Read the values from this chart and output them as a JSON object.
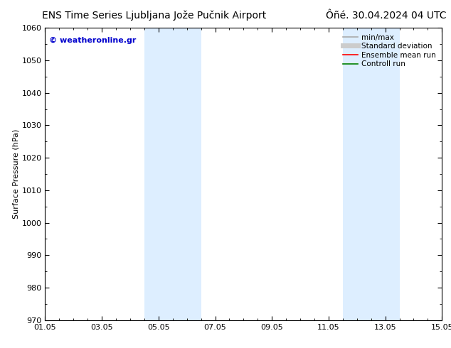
{
  "title_left": "ENS Time Series Ljubljana Jože Pučnik Airport",
  "title_right": "Ôñé. 30.04.2024 04 UTC",
  "ylabel": "Surface Pressure (hPa)",
  "ylim": [
    970,
    1060
  ],
  "yticks": [
    970,
    980,
    990,
    1000,
    1010,
    1020,
    1030,
    1040,
    1050,
    1060
  ],
  "xtick_labels": [
    "01.05",
    "03.05",
    "05.05",
    "07.05",
    "09.05",
    "11.05",
    "13.05",
    "15.05"
  ],
  "xtick_positions": [
    0,
    2,
    4,
    6,
    8,
    10,
    12,
    14
  ],
  "xlim": [
    0,
    14
  ],
  "shaded_bands": [
    {
      "x_start": 3.5,
      "x_end": 4.5,
      "color": "#ddeeff"
    },
    {
      "x_start": 4.5,
      "x_end": 5.5,
      "color": "#ddeeff"
    },
    {
      "x_start": 10.5,
      "x_end": 11.5,
      "color": "#ddeeff"
    },
    {
      "x_start": 11.5,
      "x_end": 12.5,
      "color": "#ddeeff"
    }
  ],
  "watermark_text": "© weatheronline.gr",
  "watermark_color": "#0000cc",
  "bg_color": "#ffffff",
  "legend_items": [
    {
      "label": "min/max",
      "color": "#aaaaaa",
      "linewidth": 1.2,
      "linestyle": "-"
    },
    {
      "label": "Standard deviation",
      "color": "#cccccc",
      "linewidth": 5,
      "linestyle": "-"
    },
    {
      "label": "Ensemble mean run",
      "color": "#ff0000",
      "linewidth": 1.2,
      "linestyle": "-"
    },
    {
      "label": "Controll run",
      "color": "#008000",
      "linewidth": 1.2,
      "linestyle": "-"
    }
  ],
  "title_fontsize": 10,
  "axis_fontsize": 8,
  "tick_fontsize": 8,
  "legend_fontsize": 7.5,
  "watermark_fontsize": 8
}
